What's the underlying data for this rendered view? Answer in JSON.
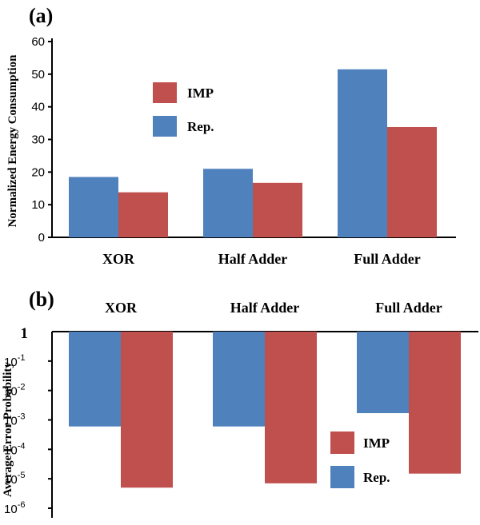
{
  "chart_data": [
    {
      "panel": "(a)",
      "type": "bar",
      "categories": [
        "XOR",
        "Half Adder",
        "Full Adder"
      ],
      "series": [
        {
          "name": "Rep.",
          "values": [
            18.5,
            21,
            51.5
          ]
        },
        {
          "name": "IMP",
          "values": [
            13.8,
            16.7,
            33.8
          ]
        }
      ],
      "ylabel": "Normalized Energy Consumption",
      "ylim": [
        0,
        60
      ],
      "yticks": [
        "0",
        "10",
        "20",
        "30",
        "40",
        "50",
        "60"
      ],
      "legend": {
        "position": "upper-left",
        "order": [
          "IMP",
          "Rep."
        ]
      },
      "grid": false
    },
    {
      "panel": "(b)",
      "type": "bar",
      "categories": [
        "XOR",
        "Half Adder",
        "Full Adder"
      ],
      "series": [
        {
          "name": "Rep.",
          "values": [
            0.0006,
            0.0006,
            0.0017
          ]
        },
        {
          "name": "IMP",
          "values": [
            5e-06,
            7e-06,
            1.5e-05
          ]
        }
      ],
      "ylabel": "Average Error Probability",
      "yscale": "log",
      "ylim": [
        1e-06,
        1
      ],
      "ytick_values": [
        1,
        0.1,
        0.01,
        0.001,
        0.0001,
        1e-05,
        1e-06
      ],
      "ytick_labels": [
        {
          "base": "1",
          "exp": ""
        },
        {
          "base": "10",
          "exp": "-1"
        },
        {
          "base": "10",
          "exp": "-2"
        },
        {
          "base": "10",
          "exp": "-3"
        },
        {
          "base": "10",
          "exp": "-4"
        },
        {
          "base": "10",
          "exp": "-5"
        },
        {
          "base": "10",
          "exp": "-6"
        }
      ],
      "category_labels_position": "top",
      "legend": {
        "position": "lower-right",
        "order": [
          "IMP",
          "Rep."
        ]
      },
      "grid": false
    }
  ],
  "colors": {
    "Rep.": "#4f81bd",
    "IMP": "#c0504d"
  }
}
